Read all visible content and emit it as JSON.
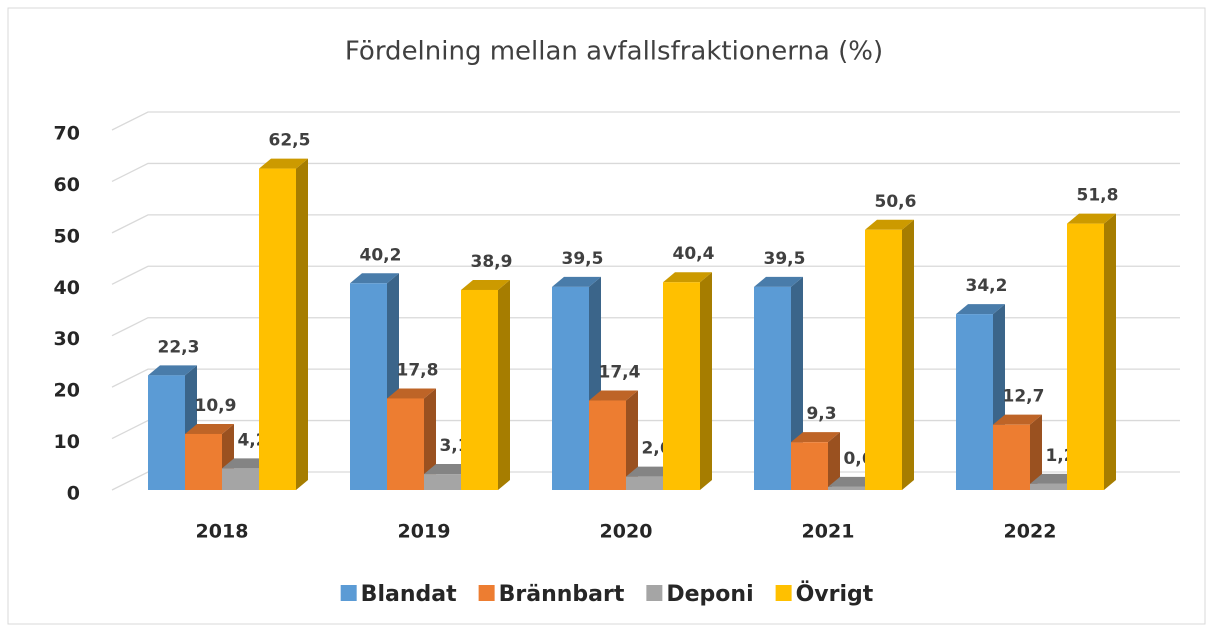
{
  "chart_data": {
    "type": "bar3d",
    "title": "Fördelning mellan avfallsfraktionerna (%)",
    "categories": [
      "2018",
      "2019",
      "2020",
      "2021",
      "2022"
    ],
    "series": [
      {
        "name": "Blandat",
        "color": "#5b9bd5",
        "values": [
          22.3,
          40.2,
          39.5,
          39.5,
          34.2
        ],
        "value_labels": [
          "22,3",
          "40,2",
          "39,5",
          "39,5",
          "34,2"
        ]
      },
      {
        "name": "Brännbart",
        "color": "#ed7d31",
        "values": [
          10.9,
          17.8,
          17.4,
          9.3,
          12.7
        ],
        "value_labels": [
          "10,9",
          "17,8",
          "17,4",
          "9,3",
          "12,7"
        ]
      },
      {
        "name": "Deponi",
        "color": "#a5a5a5",
        "values": [
          4.2,
          3.1,
          2.6,
          0.6,
          1.2
        ],
        "value_labels": [
          "4,2",
          "3,1",
          "2,6",
          "0,6",
          "1,2"
        ]
      },
      {
        "name": "Övrigt",
        "color": "#ffc000",
        "values": [
          62.5,
          38.9,
          40.4,
          50.6,
          51.8
        ],
        "value_labels": [
          "62,5",
          "38,9",
          "40,4",
          "50,6",
          "51,8"
        ]
      }
    ],
    "ylim": [
      0,
      70
    ],
    "yticks": [
      0,
      10,
      20,
      30,
      40,
      50,
      60,
      70
    ],
    "grid": true,
    "legend": "bottom"
  }
}
